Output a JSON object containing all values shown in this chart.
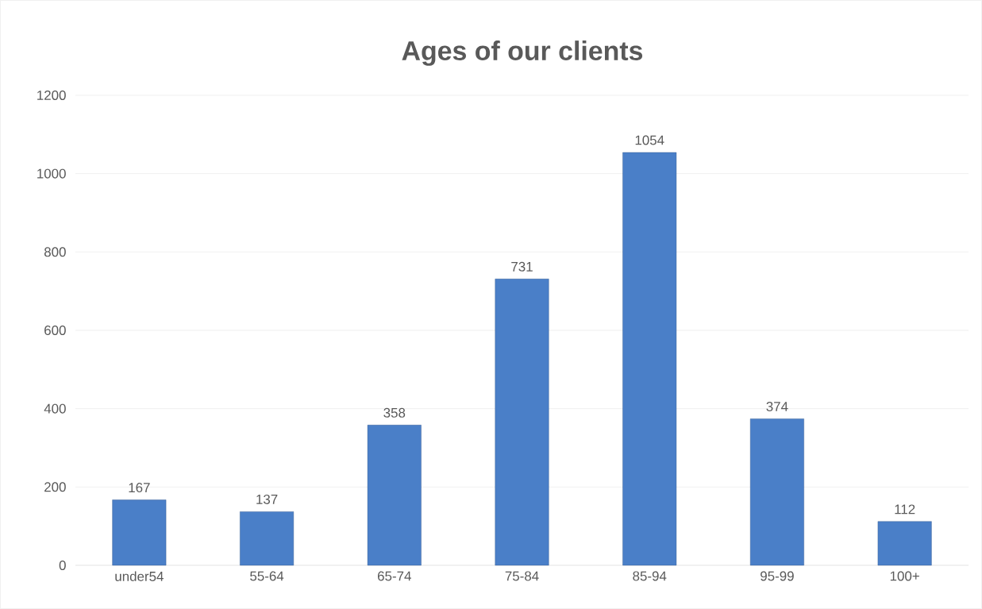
{
  "chart_data": {
    "type": "bar",
    "title": "Ages of our clients",
    "categories": [
      "under54",
      "55-64",
      "65-74",
      "75-84",
      "85-94",
      "95-99",
      "100+"
    ],
    "values": [
      167,
      137,
      358,
      731,
      1054,
      374,
      112
    ],
    "color": "#4a7fc8",
    "ylim": [
      0,
      1200
    ],
    "yticks": [
      0,
      200,
      400,
      600,
      800,
      1000,
      1200
    ],
    "grid": "y",
    "data_labels": true
  }
}
